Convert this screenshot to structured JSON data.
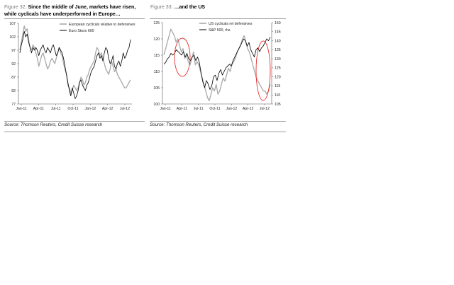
{
  "figures": [
    {
      "number_label": "Figure 32:",
      "title_line1": "Since the middle of June, markets have risen,",
      "title_line2": "while cyclicals have underperformed in Europe…",
      "source": "Source: Thomson Reuters, Credit Suisse research"
    },
    {
      "number_label": "Figure 33:",
      "title_line1": "…and the US",
      "source": "Source: Thomson Reuters, Credit Suisse research"
    }
  ],
  "chart_data": [
    {
      "type": "line",
      "x_tick_labels": [
        "Jan-11",
        "Apr-11",
        "Jul-11",
        "Oct-11",
        "Jan-12",
        "Apr-12",
        "Jul-12"
      ],
      "ylim": [
        77,
        107
      ],
      "y_ticks": [
        77,
        82,
        87,
        92,
        97,
        102,
        107
      ],
      "grid": false,
      "legend_position": "top-right",
      "series": [
        {
          "name": "European cyclicals relative to defensives",
          "color": "#a8a8a8",
          "axis": "left",
          "values": [
            97,
            100,
            103,
            106,
            104,
            105,
            101,
            98,
            97,
            99,
            98,
            96,
            94,
            91,
            93,
            95,
            96,
            94,
            92,
            90,
            91,
            93,
            94,
            93,
            92,
            94,
            96,
            98,
            96,
            95,
            92,
            90,
            88,
            84,
            83,
            81,
            82,
            84,
            83,
            82,
            83,
            85,
            87,
            86,
            84,
            85,
            87,
            88,
            90,
            91,
            92,
            93,
            96,
            98,
            97,
            95,
            96,
            94,
            92,
            90,
            89,
            88,
            90,
            93,
            91,
            89,
            90,
            88,
            87,
            86,
            85,
            84,
            83,
            83,
            84,
            85,
            86
          ]
        },
        {
          "name": "Euro Stoxx 600",
          "color": "#000000",
          "axis": "left",
          "values": [
            96,
            99,
            101,
            104,
            102,
            103,
            100,
            98,
            96,
            98,
            97,
            98,
            97,
            95,
            97,
            98,
            99,
            97,
            96,
            98,
            97,
            96,
            98,
            99,
            97,
            95,
            96,
            98,
            97,
            96,
            94,
            91,
            88,
            85,
            82,
            80,
            83,
            81,
            79,
            80,
            82,
            85,
            86,
            84,
            83,
            82,
            84,
            85,
            87,
            89,
            90,
            91,
            93,
            95,
            96,
            94,
            95,
            93,
            96,
            98,
            97,
            94,
            92,
            93,
            95,
            91,
            90,
            92,
            93,
            91,
            93,
            96,
            94,
            95,
            97,
            98,
            101
          ]
        }
      ]
    },
    {
      "type": "line",
      "x_tick_labels": [
        "Jan-11",
        "Apr-11",
        "Jul-11",
        "Oct-11",
        "Jan-12",
        "Apr-12",
        "Jul-12"
      ],
      "ylim_left": [
        100,
        125
      ],
      "y_ticks_left": [
        100,
        105,
        110,
        115,
        120,
        125
      ],
      "ylim_right": [
        105,
        150
      ],
      "y_ticks_right": [
        105,
        110,
        115,
        120,
        125,
        130,
        135,
        140,
        145,
        150
      ],
      "grid": false,
      "legend_position": "top-right",
      "series": [
        {
          "name": "US cyclicals rel defensives",
          "color": "#a8a8a8",
          "axis": "left",
          "values": [
            115,
            117,
            119,
            121,
            123,
            122,
            121,
            119,
            120,
            118,
            116,
            117,
            114,
            115,
            113,
            112,
            114,
            116,
            112,
            113,
            112,
            110,
            108,
            106,
            104,
            102,
            101,
            103,
            105,
            104,
            106,
            103,
            104,
            106,
            108,
            107,
            109,
            111,
            110,
            112,
            113,
            114,
            116,
            117,
            118,
            120,
            121,
            119,
            117,
            116,
            114,
            112,
            110,
            108,
            107,
            106,
            105,
            104,
            104,
            103,
            104,
            106
          ]
        },
        {
          "name": "S&P 500, rhs",
          "color": "#000000",
          "axis": "right",
          "values": [
            127,
            128,
            130,
            131,
            133,
            132,
            133,
            135,
            134,
            133,
            132,
            134,
            131,
            133,
            130,
            129,
            131,
            132,
            129,
            131,
            128,
            122,
            117,
            114,
            118,
            116,
            113,
            115,
            120,
            121,
            118,
            122,
            124,
            121,
            123,
            125,
            126,
            127,
            126,
            129,
            131,
            133,
            135,
            137,
            139,
            141,
            140,
            137,
            139,
            135,
            133,
            131,
            135,
            136,
            134,
            136,
            137,
            139,
            141,
            140,
            142
          ]
        }
      ],
      "annotations": [
        "red ellipse around Apr-11",
        "red ellipse around Jun–Jul-12"
      ]
    }
  ]
}
